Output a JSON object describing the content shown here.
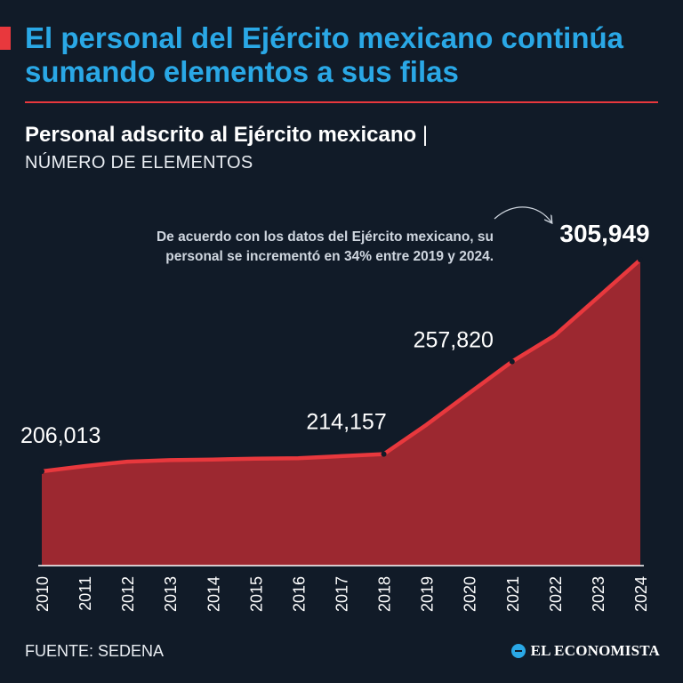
{
  "header": {
    "headline": "El personal del Ejército mexicano continúa sumando elementos a sus filas"
  },
  "chart_data": {
    "type": "area",
    "title": "Personal adscrito al Ejército mexicano",
    "title_separator": "|",
    "subtitle": "NÚMERO DE ELEMENTOS",
    "x": [
      "2010",
      "2011",
      "2012",
      "2013",
      "2014",
      "2015",
      "2016",
      "2017",
      "2018",
      "2019",
      "2020",
      "2021",
      "2022",
      "2023",
      "2024"
    ],
    "values": [
      206013,
      208500,
      210600,
      211300,
      211600,
      212000,
      212200,
      213200,
      214157,
      228000,
      243000,
      257820,
      270200,
      288000,
      305949
    ],
    "ylim": [
      150000,
      310000
    ],
    "data_labels": [
      {
        "index": 0,
        "text": "206,013"
      },
      {
        "index": 8,
        "text": "214,157"
      },
      {
        "index": 11,
        "text": "257,820"
      },
      {
        "index": 14,
        "text": "305,949"
      }
    ],
    "annotation": {
      "lines": [
        "De acuerdo con los datos del Ejército mexicano, su",
        "personal se incrementó en 34% entre 2019 y 2024."
      ]
    },
    "grid": false,
    "legend": "none",
    "colors": {
      "line": "#e8383d",
      "fill": "#9c2830",
      "axis": "#ffffff",
      "background": "#111b28"
    }
  },
  "footer": {
    "source": "FUENTE: SEDENA",
    "logo_text": "EL ECONOMISTA"
  }
}
